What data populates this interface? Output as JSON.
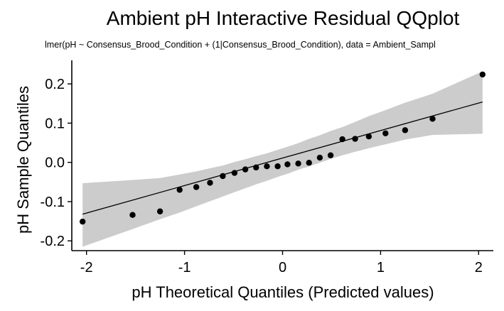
{
  "chart_data": {
    "type": "scatter",
    "title": "Ambient pH Interactive Residual QQplot",
    "subtitle": "lmer(pH ~ Consensus_Brood_Condition + (1|Consensus_Brood_Condition), data = Ambient_Sampl",
    "xlabel": "pH Theoretical Quantiles (Predicted values)",
    "ylabel": "pH Sample Quantiles",
    "xlim": [
      -2.15,
      2.15
    ],
    "ylim": [
      -0.225,
      0.26
    ],
    "xticks": [
      -2,
      -1,
      0,
      1,
      2
    ],
    "xtick_labels": [
      "-2",
      "-1",
      "0",
      "1",
      "2"
    ],
    "yticks": [
      -0.2,
      -0.1,
      0.0,
      0.1,
      0.2
    ],
    "ytick_labels": [
      "-0.2",
      "-0.1",
      "0.0",
      "0.1",
      "0.2"
    ],
    "grid": false,
    "colors": {
      "points": "#000000",
      "band": "#cccccc",
      "line": "#000000"
    },
    "points": {
      "x": [
        -2.04,
        -1.53,
        -1.25,
        -1.05,
        -0.88,
        -0.74,
        -0.61,
        -0.49,
        -0.38,
        -0.27,
        -0.16,
        -0.05,
        0.05,
        0.16,
        0.27,
        0.38,
        0.49,
        0.61,
        0.74,
        0.88,
        1.05,
        1.25,
        1.53,
        2.04
      ],
      "y": [
        -0.151,
        -0.134,
        -0.125,
        -0.07,
        -0.063,
        -0.052,
        -0.035,
        -0.027,
        -0.018,
        -0.013,
        -0.01,
        -0.01,
        -0.005,
        -0.003,
        -0.001,
        0.012,
        0.018,
        0.059,
        0.06,
        0.066,
        0.074,
        0.082,
        0.111,
        0.224
      ]
    },
    "reference_line": {
      "x": [
        -2.04,
        2.04
      ],
      "y": [
        -0.132,
        0.154
      ]
    },
    "confidence_band": {
      "x": [
        -2.04,
        -1.53,
        -1.25,
        -1.05,
        -0.88,
        -0.74,
        -0.61,
        -0.49,
        -0.38,
        -0.27,
        -0.16,
        -0.05,
        0.05,
        0.16,
        0.27,
        0.38,
        0.49,
        0.61,
        0.74,
        0.88,
        1.05,
        1.25,
        1.53,
        2.04
      ],
      "lower": [
        -0.215,
        -0.17,
        -0.145,
        -0.128,
        -0.112,
        -0.099,
        -0.087,
        -0.076,
        -0.066,
        -0.056,
        -0.047,
        -0.037,
        -0.029,
        -0.019,
        -0.01,
        -0.001,
        0.009,
        0.018,
        0.027,
        0.036,
        0.046,
        0.058,
        0.07,
        0.073
      ],
      "upper": [
        -0.053,
        -0.045,
        -0.04,
        -0.031,
        -0.023,
        -0.015,
        -0.008,
        0.001,
        0.008,
        0.016,
        0.023,
        0.032,
        0.04,
        0.049,
        0.06,
        0.069,
        0.08,
        0.09,
        0.103,
        0.118,
        0.133,
        0.152,
        0.175,
        0.232
      ]
    }
  }
}
